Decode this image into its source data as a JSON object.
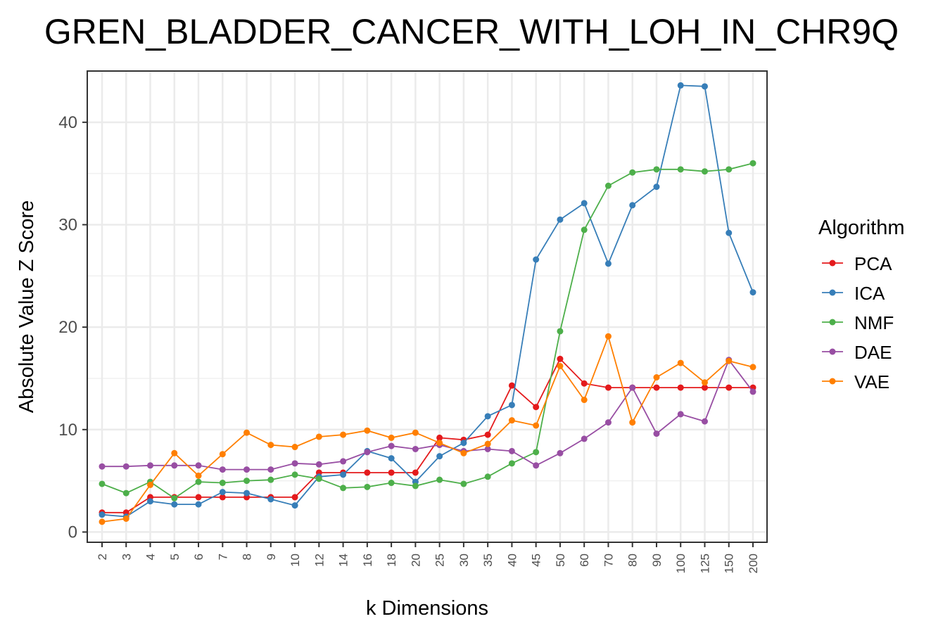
{
  "chart_data": {
    "type": "line",
    "title": "GREN_BLADDER_CANCER_WITH_LOH_IN_CHR9Q",
    "xlabel": "k Dimensions",
    "ylabel": "Absolute Value Z Score",
    "categories": [
      "2",
      "3",
      "4",
      "5",
      "6",
      "7",
      "8",
      "9",
      "10",
      "12",
      "14",
      "16",
      "18",
      "20",
      "25",
      "30",
      "35",
      "40",
      "45",
      "50",
      "60",
      "70",
      "80",
      "90",
      "100",
      "125",
      "150",
      "200"
    ],
    "ylim": [
      -1,
      45
    ],
    "yticks": [
      0,
      10,
      20,
      30,
      40
    ],
    "grid": true,
    "legend": {
      "title": "Algorithm",
      "position": "right"
    },
    "series": [
      {
        "name": "PCA",
        "color": "#e41a1c",
        "values": [
          1.9,
          1.9,
          3.4,
          3.4,
          3.4,
          3.4,
          3.4,
          3.4,
          3.4,
          5.8,
          5.8,
          5.8,
          5.8,
          5.8,
          9.2,
          9.0,
          9.5,
          14.3,
          12.2,
          16.9,
          14.5,
          14.1,
          14.1,
          14.1,
          14.1,
          14.1,
          14.1,
          14.1
        ]
      },
      {
        "name": "ICA",
        "color": "#377eb8",
        "values": [
          1.7,
          1.5,
          3.0,
          2.7,
          2.7,
          3.9,
          3.8,
          3.2,
          2.6,
          5.4,
          5.6,
          7.9,
          7.2,
          4.9,
          7.4,
          8.7,
          11.3,
          12.4,
          26.6,
          30.5,
          32.1,
          26.2,
          31.9,
          33.7,
          43.6,
          43.5,
          29.2,
          23.4
        ]
      },
      {
        "name": "NMF",
        "color": "#4daf4a",
        "values": [
          4.7,
          3.8,
          4.9,
          3.3,
          4.9,
          4.8,
          5.0,
          5.1,
          5.6,
          5.2,
          4.3,
          4.4,
          4.8,
          4.5,
          5.1,
          4.7,
          5.4,
          6.7,
          7.8,
          19.6,
          29.5,
          33.8,
          35.1,
          35.4,
          35.4,
          35.2,
          35.4,
          36.0
        ]
      },
      {
        "name": "DAE",
        "color": "#984ea3",
        "values": [
          6.4,
          6.4,
          6.5,
          6.5,
          6.5,
          6.1,
          6.1,
          6.1,
          6.7,
          6.6,
          6.9,
          7.8,
          8.4,
          8.1,
          8.5,
          7.9,
          8.1,
          7.9,
          6.5,
          7.7,
          9.1,
          10.7,
          14.1,
          9.6,
          11.5,
          10.8,
          16.8,
          13.7
        ]
      },
      {
        "name": "VAE",
        "color": "#ff7f00",
        "values": [
          1.0,
          1.3,
          4.6,
          7.7,
          5.5,
          7.6,
          9.7,
          8.5,
          8.3,
          9.3,
          9.5,
          9.9,
          9.2,
          9.7,
          8.7,
          7.7,
          8.6,
          10.9,
          10.4,
          16.2,
          12.9,
          19.1,
          10.7,
          15.1,
          16.5,
          14.6,
          16.7,
          16.1
        ]
      }
    ]
  }
}
